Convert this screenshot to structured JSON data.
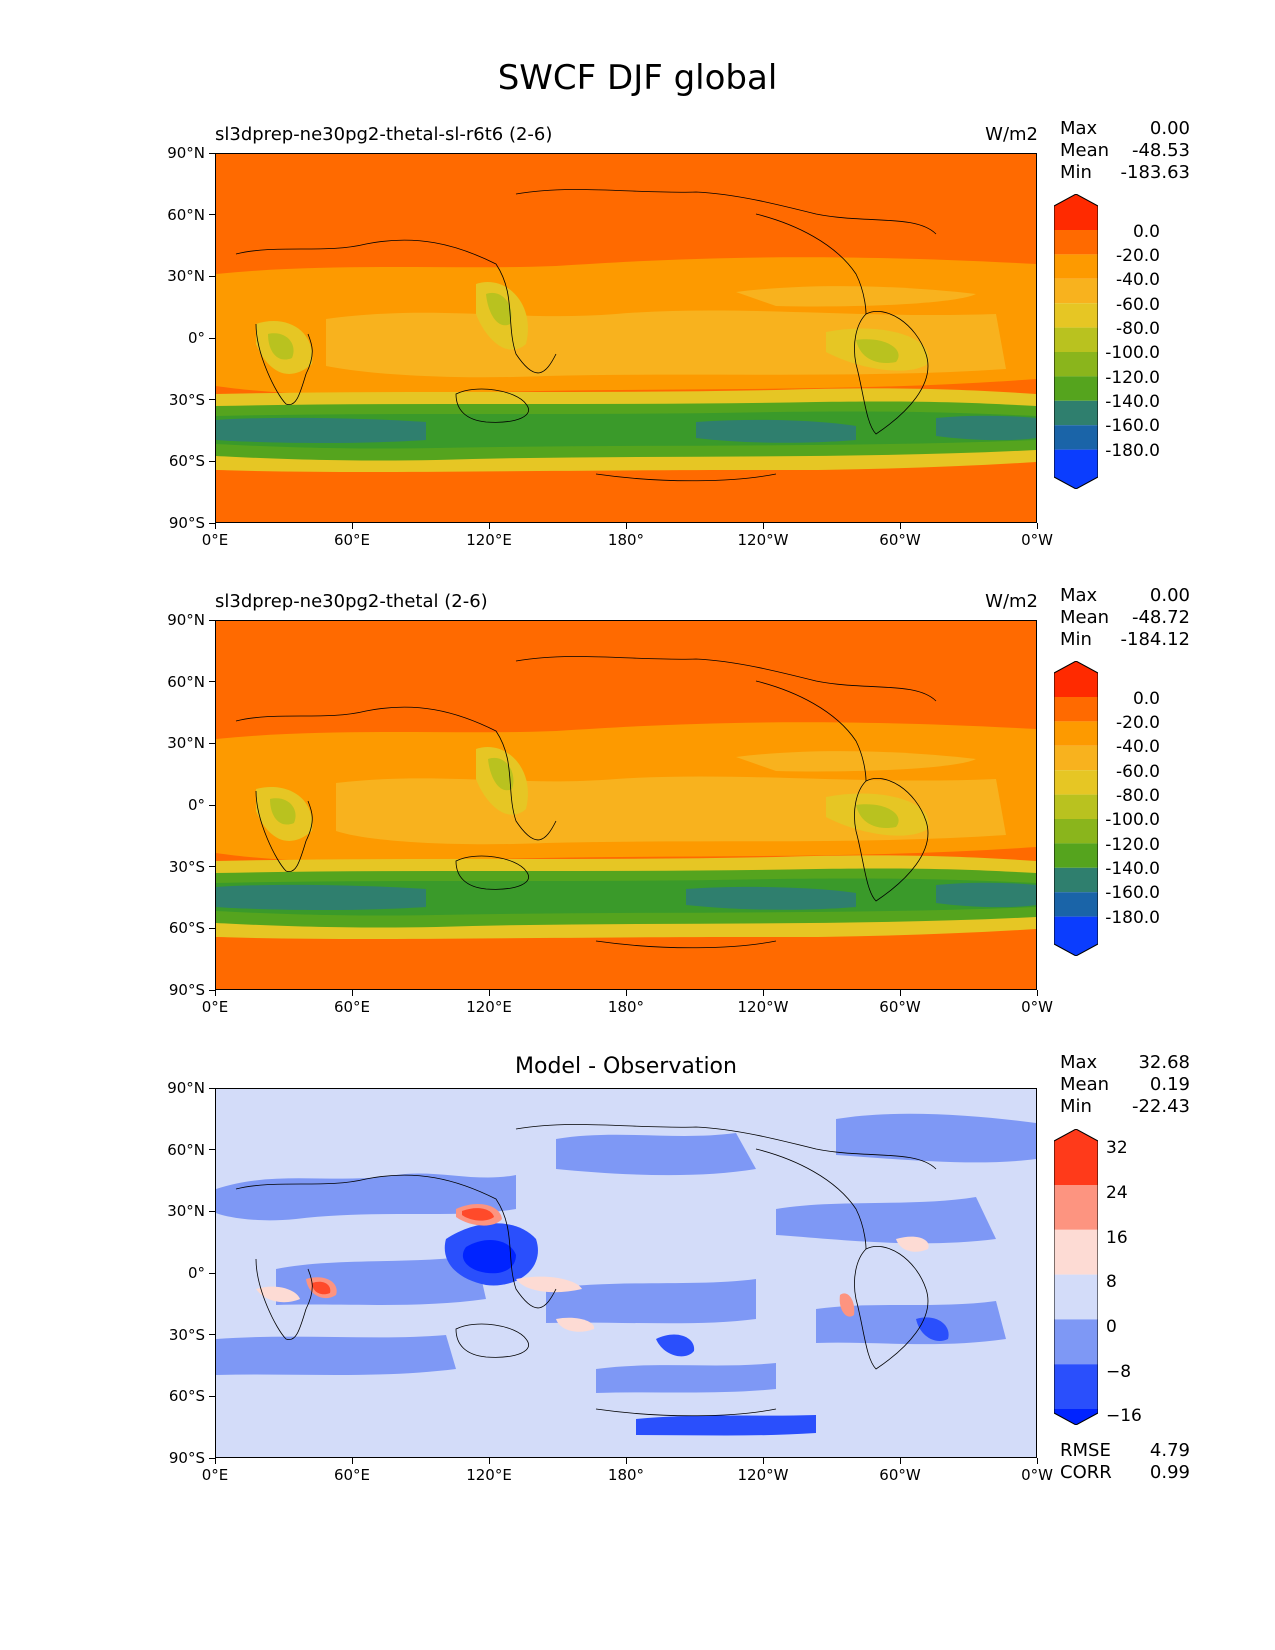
{
  "figure": {
    "title": "SWCF DJF global"
  },
  "axes": {
    "lat_labels": [
      "90°N",
      "60°N",
      "30°N",
      "0°",
      "30°S",
      "60°S",
      "90°S"
    ],
    "lon_labels": [
      "0°E",
      "60°E",
      "120°E",
      "180°",
      "120°W",
      "60°W",
      "0°W"
    ]
  },
  "panels": [
    {
      "title": "sl3dprep-ne30pg2-thetal-sl-r6t6 (2-6)",
      "units": "W/m2",
      "stats": [
        {
          "label": "Max",
          "value": "0.00"
        },
        {
          "label": "Mean",
          "value": "-48.53"
        },
        {
          "label": "Min",
          "value": "-183.63"
        }
      ],
      "colorbar": {
        "labels": [
          "0.0",
          "-20.0",
          "-40.0",
          "-60.0",
          "-80.0",
          "-100.0",
          "-120.0",
          "-140.0",
          "-160.0",
          "-180.0"
        ],
        "colors": [
          "#ff2a00",
          "#ff6a00",
          "#fd9a00",
          "#f8b21e",
          "#e6c624",
          "#b9c21f",
          "#8ab51c",
          "#55a41e",
          "#3a9a2a",
          "#2f7f6e",
          "#1a64a8",
          "#0b3dfe"
        ]
      }
    },
    {
      "title": "sl3dprep-ne30pg2-thetal (2-6)",
      "units": "W/m2",
      "stats": [
        {
          "label": "Max",
          "value": "0.00"
        },
        {
          "label": "Mean",
          "value": "-48.72"
        },
        {
          "label": "Min",
          "value": "-184.12"
        }
      ],
      "colorbar": {
        "labels": [
          "0.0",
          "-20.0",
          "-40.0",
          "-60.0",
          "-80.0",
          "-100.0",
          "-120.0",
          "-140.0",
          "-160.0",
          "-180.0"
        ],
        "colors": [
          "#ff2a00",
          "#ff6a00",
          "#fd9a00",
          "#f8b21e",
          "#e6c624",
          "#b9c21f",
          "#8ab51c",
          "#55a41e",
          "#3a9a2a",
          "#2f7f6e",
          "#1a64a8",
          "#0b3dfe"
        ]
      }
    },
    {
      "title": "Model - Observation",
      "units": "",
      "stats": [
        {
          "label": "Max",
          "value": "32.68"
        },
        {
          "label": "Mean",
          "value": "0.19"
        },
        {
          "label": "Min",
          "value": "-22.43"
        }
      ],
      "colorbar": {
        "labels": [
          "32",
          "24",
          "16",
          "8",
          "0",
          "−8",
          "−16"
        ],
        "colors": [
          "#ff3a1a",
          "#ff4a2a",
          "#fd9480",
          "#fddbd4",
          "#d3dcf9",
          "#7e98f5",
          "#2a4ffc",
          "#0023ff"
        ]
      },
      "metrics": [
        {
          "label": "RMSE",
          "value": "4.79"
        },
        {
          "label": "CORR",
          "value": "0.99"
        }
      ]
    }
  ]
}
